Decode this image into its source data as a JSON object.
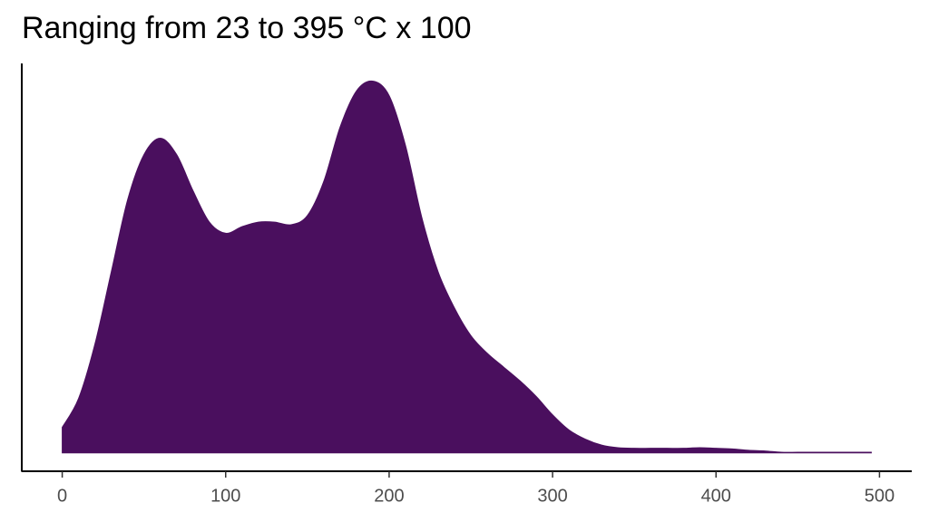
{
  "chart_data": {
    "type": "area",
    "title": "Ranging from 23 to 395 °C x 100",
    "color": "#4a0f5e",
    "x": [
      0,
      10,
      20,
      30,
      40,
      50,
      60,
      70,
      80,
      90,
      100,
      110,
      120,
      130,
      140,
      150,
      160,
      170,
      180,
      190,
      200,
      210,
      220,
      230,
      240,
      250,
      260,
      270,
      280,
      290,
      300,
      310,
      320,
      330,
      340,
      350,
      360,
      370,
      380,
      390,
      400,
      410,
      420,
      430,
      440,
      450,
      460,
      470,
      480,
      490,
      495
    ],
    "values": [
      0.00039,
      0.00083,
      0.00166,
      0.00276,
      0.00386,
      0.00455,
      0.0048,
      0.00455,
      0.004,
      0.00352,
      0.00335,
      0.00345,
      0.00352,
      0.00352,
      0.00348,
      0.00362,
      0.00414,
      0.00497,
      0.00552,
      0.00567,
      0.00545,
      0.00469,
      0.00359,
      0.00276,
      0.00221,
      0.00179,
      0.00152,
      0.00131,
      0.0011,
      0.00086,
      0.00058,
      0.00035,
      0.00021,
      0.00012,
      8e-05,
      7e-05,
      7e-05,
      7e-05,
      7e-05,
      8e-05,
      7e-05,
      6e-05,
      4e-05,
      3e-05,
      1e-05,
      1e-05,
      1e-05,
      1e-05,
      1e-05,
      1e-05,
      1e-05
    ],
    "xlim": [
      -24.75,
      519.75
    ],
    "xticks": [
      0,
      100,
      200,
      300,
      400,
      500
    ],
    "ylim": [
      -0.00028,
      0.00594
    ]
  }
}
